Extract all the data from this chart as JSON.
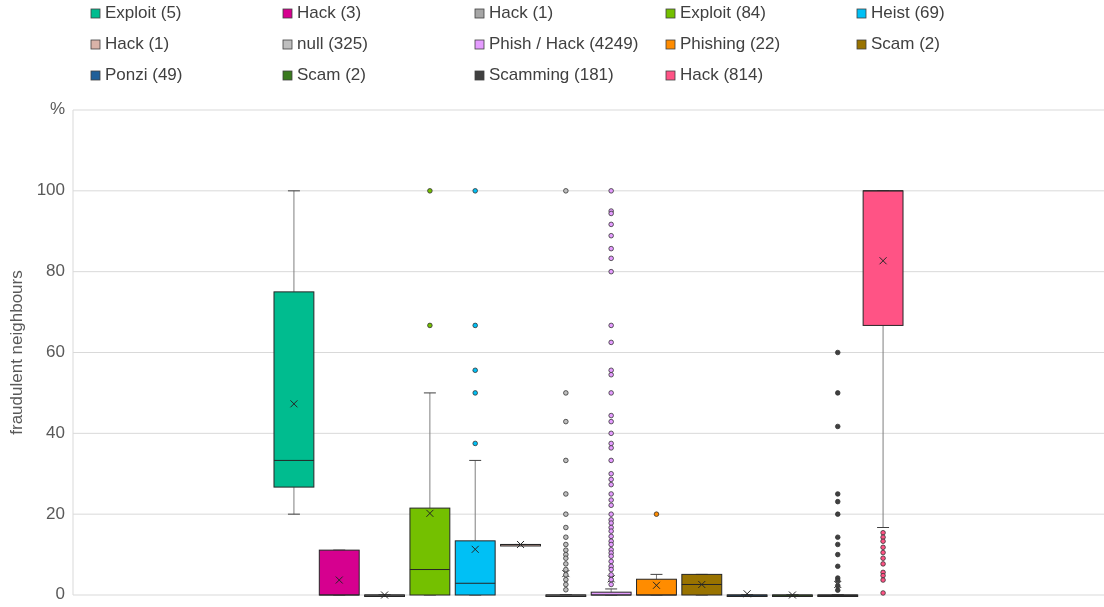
{
  "chart_data": {
    "type": "box",
    "ylabel": "fraudulent neighbours",
    "categories": [
      null
    ],
    "ylim": [
      0,
      120
    ],
    "yticks": [
      0,
      20,
      40,
      60,
      80,
      100,
      {
        "value": 120,
        "label": "%"
      }
    ],
    "grid": "y",
    "legend": "top",
    "series": [
      {
        "name": "Exploit (5)",
        "color": "#00bc8f",
        "boxes": [
          {
            "low": 20,
            "q1": 26.7,
            "median": 33.3,
            "q3": 75,
            "high": 100,
            "mean": 47.3
          }
        ]
      },
      {
        "name": "Hack (3)",
        "color": "#d6008f",
        "boxes": [
          {
            "low": 0,
            "q1": 0,
            "median": 0,
            "q3": 11.1,
            "high": 11.1,
            "mean": 3.7
          }
        ]
      },
      {
        "name": "Hack (1)",
        "color": "#a6a6a6",
        "boxes": [
          {
            "low": 0,
            "q1": 0,
            "median": 0,
            "q3": 0,
            "high": 0,
            "mean": 0
          }
        ]
      },
      {
        "name": "Exploit (84)",
        "color": "#74c000",
        "boxes": [
          {
            "low": 0,
            "q1": 0,
            "median": 6.3,
            "q3": 21.5,
            "high": 50,
            "mean": 20.2,
            "outliers": [
              66.7,
              100
            ]
          }
        ]
      },
      {
        "name": "Heist (69)",
        "color": "#00c0f5",
        "boxes": [
          {
            "low": 0,
            "q1": 0,
            "median": 2.9,
            "q3": 13.4,
            "high": 33.3,
            "mean": 11.3,
            "outliers": [
              37.5,
              50,
              55.6,
              66.7,
              100
            ]
          }
        ]
      },
      {
        "name": "Hack (1)",
        "color": "#d9b3a8",
        "boxes": [
          {
            "low": 12.5,
            "q1": 12.5,
            "median": 12.5,
            "q3": 12.5,
            "high": 12.5,
            "mean": 12.5
          }
        ]
      },
      {
        "name": "null (325)",
        "color": "#bfbfbf",
        "boxes": [
          {
            "low": 0,
            "q1": 0,
            "median": 0,
            "q3": 0,
            "high": 0,
            "mean": 5.3,
            "outliers": [
              100,
              50,
              42.9,
              33.3,
              25,
              20,
              16.7,
              14.3,
              12.5,
              11.1,
              10,
              9.1,
              7.7,
              6.3,
              5,
              3.8,
              2.6,
              1.3
            ]
          }
        ]
      },
      {
        "name": "Phish / Hack (4249)",
        "color": "#e59cff",
        "boxes": [
          {
            "low": 0,
            "q1": 0,
            "median": 0,
            "q3": 0.7,
            "high": 1.5,
            "mean": 4,
            "outliers": [
              100,
              95,
              94.4,
              91.7,
              88.9,
              85.7,
              83.3,
              80,
              66.7,
              62.5,
              55.6,
              54.5,
              50,
              44.4,
              42.9,
              40,
              37.5,
              36.4,
              33.3,
              30,
              28.6,
              27.3,
              25,
              23.5,
              22.2,
              20,
              18.6,
              17.8,
              16.7,
              15.8,
              14.5,
              13.3,
              12.5,
              11.2,
              10.4,
              9.6,
              8.3,
              7.1,
              6.3,
              5,
              3.8,
              2.6
            ]
          }
        ]
      },
      {
        "name": "Phishing (22)",
        "color": "#ff8c00",
        "boxes": [
          {
            "low": 0,
            "q1": 0,
            "median": 0,
            "q3": 3.9,
            "high": 5.1,
            "mean": 2.4,
            "outliers": [
              20
            ]
          }
        ]
      },
      {
        "name": "Scam (2)",
        "color": "#997300",
        "boxes": [
          {
            "low": 0,
            "q1": 0,
            "median": 2.6,
            "q3": 5.1,
            "high": 5.1,
            "mean": 2.6
          }
        ]
      },
      {
        "name": "Ponzi (49)",
        "color": "#1f5f99",
        "boxes": [
          {
            "low": 0,
            "q1": 0,
            "median": 0,
            "q3": 0,
            "high": 0,
            "mean": 0.3
          }
        ]
      },
      {
        "name": "Scam (2)",
        "color": "#3a7a1f",
        "boxes": [
          {
            "low": 0,
            "q1": 0,
            "median": 0,
            "q3": 0,
            "high": 0,
            "mean": 0
          }
        ]
      },
      {
        "name": "Scamming (181)",
        "color": "#404040",
        "boxes": [
          {
            "low": 0,
            "q1": 0,
            "median": 0,
            "q3": 0,
            "high": 0,
            "mean": 2.6,
            "outliers": [
              60,
              50,
              41.7,
              25,
              23.1,
              20,
              14.3,
              12.5,
              10,
              7.1,
              4.2,
              3.6,
              2.3,
              1.2
            ]
          }
        ]
      },
      {
        "name": "Hack (814)",
        "color": "#ff5385",
        "boxes": [
          {
            "low": 16.7,
            "q1": 66.7,
            "median": 100,
            "q3": 100,
            "high": 100,
            "mean": 82.7,
            "outliers": [
              15.4,
              14.3,
              13.3,
              11.8,
              10.5,
              9.1,
              7.7,
              5.6,
              4.8,
              3.7,
              0.5
            ]
          }
        ]
      }
    ]
  }
}
